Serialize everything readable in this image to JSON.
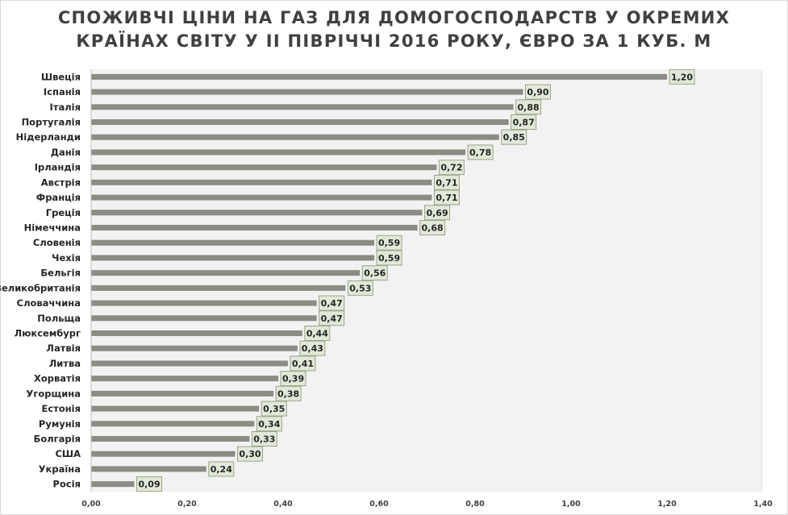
{
  "chart_data": {
    "type": "bar",
    "orientation": "horizontal",
    "title": "СПОЖИВЧІ ЦІНИ НА ГАЗ ДЛЯ ДОМОГОСПОДАРСТВ У ОКРЕМИХ КРАЇНАХ СВІТУ У ІІ ПІВРІЧЧІ 2016 РОКУ, ЄВРО ЗА 1 КУБ. М",
    "title_lines": [
      "СПОЖИВЧІ ЦІНИ НА ГАЗ ДЛЯ ДОМОГОСПОДАРСТВ У ОКРЕМИХ",
      "КРАЇНАХ СВІТУ У ІІ ПІВРІЧЧІ 2016 РОКУ, ЄВРО ЗА 1 КУБ. М"
    ],
    "categories": [
      "Швеція",
      "Іспанія",
      "Італія",
      "Португалія",
      "Нідерланди",
      "Данія",
      "Ірландія",
      "Австрія",
      "Франція",
      "Греція",
      "Німеччина",
      "Словенія",
      "Чехія",
      "Бельгія",
      "Великобританія",
      "Словаччина",
      "Польща",
      "Люксембург",
      "Латвія",
      "Литва",
      "Хорватія",
      "Угорщина",
      "Естонія",
      "Румунія",
      "Болгарія",
      "США",
      "Україна",
      "Росія"
    ],
    "values": [
      1.2,
      0.9,
      0.88,
      0.87,
      0.85,
      0.78,
      0.72,
      0.71,
      0.71,
      0.69,
      0.68,
      0.59,
      0.59,
      0.56,
      0.53,
      0.47,
      0.47,
      0.44,
      0.43,
      0.41,
      0.39,
      0.38,
      0.35,
      0.34,
      0.33,
      0.3,
      0.24,
      0.09
    ],
    "data_labels": [
      "1,20",
      "0,90",
      "0,88",
      "0,87",
      "0,85",
      "0,78",
      "0,72",
      "0,71",
      "0,71",
      "0,69",
      "0,68",
      "0,59",
      "0,59",
      "0,56",
      "0,53",
      "0,47",
      "0,47",
      "0,44",
      "0,43",
      "0,41",
      "0,39",
      "0,38",
      "0,35",
      "0,34",
      "0,33",
      "0,30",
      "0,24",
      "0,09"
    ],
    "xlim": [
      0,
      1.4
    ],
    "x_ticks": [
      0,
      0.2,
      0.4,
      0.6,
      0.8,
      1.0,
      1.2,
      1.4
    ],
    "x_tick_labels": [
      "0,00",
      "0,20",
      "0,40",
      "0,60",
      "0,80",
      "1,00",
      "1,20",
      "1,40"
    ],
    "xlabel": "",
    "ylabel": "",
    "grid": false,
    "legend": "none"
  },
  "colors": {
    "bar": "#8c8c84",
    "plot_background": "#f2f2f2",
    "label_box_fill": "#e2e8d8",
    "label_box_border": "#9aa58c",
    "axis_line": "#bfbfbf",
    "title": "#404040"
  }
}
